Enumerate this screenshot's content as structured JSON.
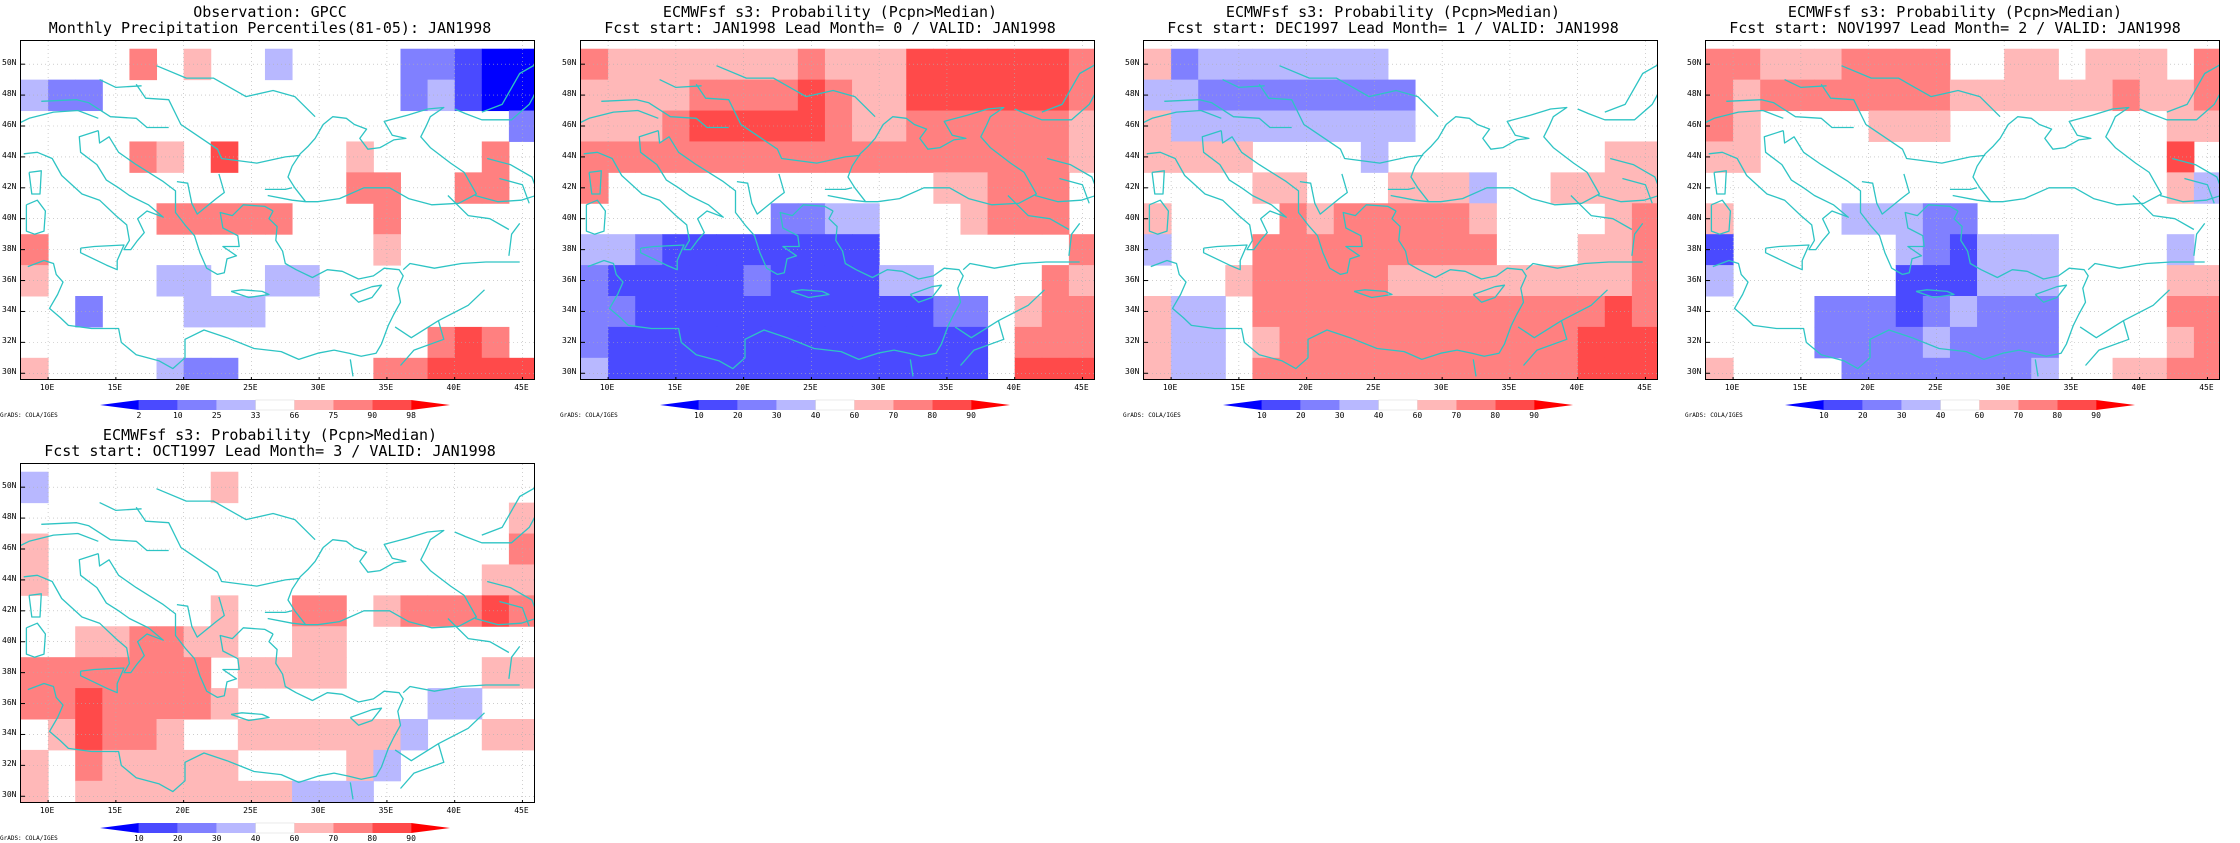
{
  "figure": {
    "lat_labels": [
      "50N",
      "48N",
      "46N",
      "44N",
      "42N",
      "40N",
      "38N",
      "36N",
      "34N",
      "32N",
      "30N"
    ],
    "lon_labels": [
      "10E",
      "15E",
      "20E",
      "25E",
      "30E",
      "35E",
      "40E",
      "45E"
    ],
    "credit": "GrADS: COLA/IGES",
    "colors": {
      "coast": "#2ec4c4",
      "grid": "#b0b0b0",
      "frame": "#000000"
    }
  },
  "chart_data": [
    {
      "type": "heatmap",
      "title": "Observation: GPCC",
      "subtitle": "Monthly Precipitation Percentiles(81-05): JAN1998",
      "xlim": [
        8,
        46
      ],
      "ylim": [
        29.5,
        51.5
      ],
      "colorbar_ticks": [
        "2",
        "10",
        "25",
        "33",
        "66",
        "75",
        "90",
        "98"
      ],
      "colorbar_colors": [
        "#0000ff",
        "#4a4aff",
        "#8080ff",
        "#b8b8ff",
        "#ffffff",
        "#ffb8b8",
        "#ff8080",
        "#ff4a4a",
        "#ff0000"
      ],
      "level_desc": "0=blue(<2) 1=(2-10) 2=(10-25) 3=(25-33) 4=white(33-66) 5=(66-75) 6=(75-90) 7=(90-98) 8=red(>98)",
      "cells": [
        "4444645443444422100",
        "3224444444444423100",
        "4444444444444444442",
        "4444654744445444464",
        "4444444444446644664",
        "4444466666444644444",
        "6444444444444544444",
        "5444433443344444444",
        "4424443334444444444",
        "4444444444444446764",
        "5444432244444667777",
        "4442224444444467777"
      ]
    },
    {
      "type": "heatmap",
      "title": "ECMWFsf s3: Probability (Pcpn>Median)",
      "subtitle": "Fcst start: JAN1998   Lead Month= 0 / VALID: JAN1998",
      "xlim": [
        8,
        46
      ],
      "ylim": [
        29.5,
        51.5
      ],
      "colorbar_ticks": [
        "10",
        "20",
        "30",
        "40",
        "60",
        "70",
        "80",
        "90"
      ],
      "colorbar_colors": [
        "#0000ff",
        "#4a4aff",
        "#8080ff",
        "#b8b8ff",
        "#ffffff",
        "#ffb8b8",
        "#ff8080",
        "#ff4a4a",
        "#ff0000"
      ],
      "level_desc": "0=blue(<10) 1=(10-20) 2=(20-30) 3=(30-40) 4=white(40-60) 5=(60-70) 6=(70-80) 7=(80-90) 8=red(>90)",
      "cells": [
        "6555555565557777776",
        "5555666676557777776",
        "5556777776556666665",
        "6666666666666666665",
        "6444444444444556664",
        "4444444223344456664",
        "3321111111144444446",
        "2111112111133444465",
        "2211111111111224566",
        "2111111111111114666",
        "3111111111111114777",
        "4444446675666657777"
      ]
    },
    {
      "type": "heatmap",
      "title": "ECMWFsf s3: Probability (Pcpn>Median)",
      "subtitle": "Fcst start: DEC1997   Lead Month= 1 / VALID: JAN1998",
      "xlim": [
        8,
        46
      ],
      "ylim": [
        29.5,
        51.5
      ],
      "colorbar_ticks": [
        "10",
        "20",
        "30",
        "40",
        "60",
        "70",
        "80",
        "90"
      ],
      "colorbar_colors": [
        "#0000ff",
        "#4a4aff",
        "#8080ff",
        "#b8b8ff",
        "#ffffff",
        "#ffb8b8",
        "#ff8080",
        "#ff4a4a",
        "#ff0000"
      ],
      "level_desc": "0=blue(<10) 1=(10-20) 2=(20-30) 3=(30-40) 4=white(40-60) 5=(60-70) 6=(70-80) 7=(80-90) 8=red(>90)",
      "cells": [
        "5233333334444444444",
        "3322222222444444444",
        "5333333333444444444",
        "5555444434444444455",
        "4444554445553445555",
        "5444465666665444456",
        "3444666666666444556",
        "4445666665555555556",
        "5334666666666666676",
        "5334566666666666777",
        "5334666666666666777",
        "5444665555555556777"
      ]
    },
    {
      "type": "heatmap",
      "title": "ECMWFsf s3: Probability (Pcpn>Median)",
      "subtitle": "Fcst start: NOV1997   Lead Month= 2 / VALID: JAN1998",
      "xlim": [
        8,
        46
      ],
      "ylim": [
        29.5,
        51.5
      ],
      "colorbar_ticks": [
        "10",
        "20",
        "30",
        "40",
        "60",
        "70",
        "80",
        "90"
      ],
      "colorbar_colors": [
        "#0000ff",
        "#4a4aff",
        "#8080ff",
        "#b8b8ff",
        "#ffffff",
        "#ffb8b8",
        "#ff8080",
        "#ff4a4a",
        "#ff0000"
      ],
      "level_desc": "0=blue(<10) 1=(10-20) 2=(20-30) 3=(30-40) 4=white(40-60) 5=(60-70) 6=(70-80) 7=(80-90) 8=red(>90)",
      "cells": [
        "6655566664455455546",
        "6566666665555556556",
        "6544445554444444455",
        "5544444444444444474",
        "4444444444444444453",
        "5444433322444444444",
        "1444444321333444434",
        "3444444111333444455",
        "4444222123222444466",
        "4444222232222444456",
        "5444422222223445566",
        "4455444333444444444"
      ]
    },
    {
      "type": "heatmap",
      "title": "ECMWFsf s3: Probability (Pcpn>Median)",
      "subtitle": "Fcst start: OCT1997   Lead Month= 3 / VALID: JAN1998",
      "xlim": [
        8,
        46
      ],
      "ylim": [
        29.5,
        51.5
      ],
      "colorbar_ticks": [
        "10",
        "20",
        "30",
        "40",
        "60",
        "70",
        "80",
        "90"
      ],
      "colorbar_colors": [
        "#0000ff",
        "#4a4aff",
        "#8080ff",
        "#b8b8ff",
        "#ffffff",
        "#ffb8b8",
        "#ff8080",
        "#ff4a4a",
        "#ff0000"
      ],
      "level_desc": "0=blue(<10) 1=(10-20) 2=(20-30) 3=(30-40) 4=white(40-60) 5=(60-70) 6=(70-80) 7=(80-90) 8=red(>90)",
      "cells": [
        "3444444544444444444",
        "4444444444444444445",
        "5444444444444444446",
        "5444444444444444455",
        "4444444544664566676",
        "4455665544554444444",
        "6666666455554444455",
        "6676666544444443344",
        "4576654455555534455",
        "5465555544445344444",
        "5455555555333444444",
        "6666555666444434444"
      ]
    }
  ]
}
